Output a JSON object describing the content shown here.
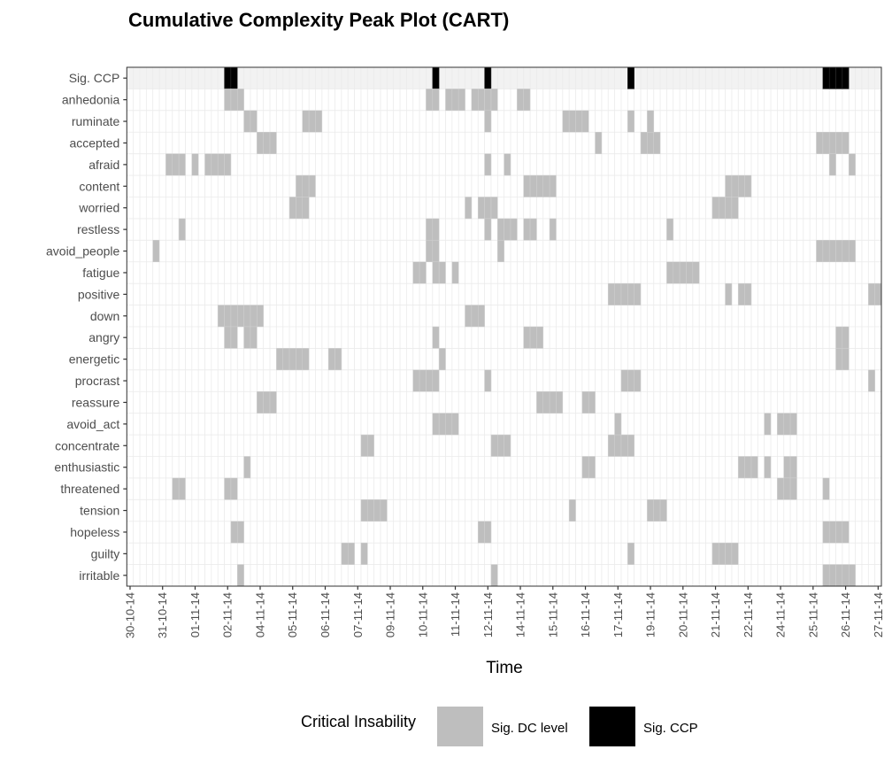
{
  "chart_data": {
    "type": "heatmap",
    "title": "Cumulative Complexity Peak Plot (CART)",
    "xlabel": "Time",
    "ylabel": "",
    "n_time_points": 116,
    "x_tick_every": 5,
    "x_tick_labels": [
      "30-10-14",
      "31-10-14",
      "01-11-14",
      "02-11-14",
      "04-11-14",
      "05-11-14",
      "06-11-14",
      "07-11-14",
      "09-11-14",
      "10-11-14",
      "11-11-14",
      "12-11-14",
      "14-11-14",
      "15-11-14",
      "16-11-14",
      "17-11-14",
      "19-11-14",
      "20-11-14",
      "21-11-14",
      "22-11-14",
      "24-11-14",
      "25-11-14",
      "26-11-14",
      "27-11-14"
    ],
    "grid": true,
    "legend": {
      "position": "bottom",
      "title": "Critical Insability",
      "entries": [
        {
          "label": "Sig. DC level",
          "color": "#bebebe"
        },
        {
          "label": "Sig. CCP",
          "color": "#000000"
        }
      ]
    },
    "ccp_row_background": "#f2f2f2",
    "rows": [
      {
        "name": "Sig. CCP",
        "kind": "ccp",
        "cells": [
          15,
          16,
          47,
          55,
          77,
          107,
          108,
          109,
          110
        ]
      },
      {
        "name": "anhedonia",
        "cells": [
          15,
          16,
          17,
          46,
          47,
          49,
          50,
          51,
          53,
          54,
          55,
          56,
          60,
          61
        ]
      },
      {
        "name": "ruminate",
        "cells": [
          18,
          19,
          27,
          28,
          29,
          55,
          67,
          68,
          69,
          70,
          77,
          80
        ]
      },
      {
        "name": "accepted",
        "cells": [
          20,
          21,
          22,
          72,
          79,
          80,
          81,
          106,
          107,
          108,
          109,
          110
        ]
      },
      {
        "name": "afraid",
        "cells": [
          6,
          7,
          8,
          10,
          12,
          13,
          14,
          15,
          55,
          58,
          108,
          111
        ]
      },
      {
        "name": "content",
        "cells": [
          26,
          27,
          28,
          61,
          62,
          63,
          64,
          65,
          92,
          93,
          94,
          95
        ]
      },
      {
        "name": "worried",
        "cells": [
          25,
          26,
          27,
          52,
          54,
          55,
          56,
          90,
          91,
          92,
          93
        ]
      },
      {
        "name": "restless",
        "cells": [
          8,
          46,
          47,
          55,
          57,
          58,
          59,
          61,
          62,
          65,
          83
        ]
      },
      {
        "name": "avoid_people",
        "cells": [
          4,
          46,
          47,
          57,
          106,
          107,
          108,
          109,
          110,
          111
        ]
      },
      {
        "name": "fatigue",
        "cells": [
          44,
          45,
          47,
          48,
          50,
          83,
          84,
          85,
          86,
          87
        ]
      },
      {
        "name": "positive",
        "cells": [
          74,
          75,
          76,
          77,
          78,
          92,
          94,
          95,
          114,
          115
        ]
      },
      {
        "name": "down",
        "cells": [
          14,
          15,
          16,
          17,
          18,
          19,
          20,
          52,
          53,
          54
        ]
      },
      {
        "name": "angry",
        "cells": [
          15,
          16,
          18,
          19,
          47,
          61,
          62,
          63,
          109,
          110
        ]
      },
      {
        "name": "energetic",
        "cells": [
          23,
          24,
          25,
          26,
          27,
          31,
          32,
          48,
          109,
          110
        ]
      },
      {
        "name": "procrast",
        "cells": [
          44,
          45,
          46,
          47,
          55,
          76,
          77,
          78,
          114
        ]
      },
      {
        "name": "reassure",
        "cells": [
          20,
          21,
          22,
          63,
          64,
          65,
          66,
          70,
          71
        ]
      },
      {
        "name": "avoid_act",
        "cells": [
          47,
          48,
          49,
          50,
          75,
          98,
          100,
          101,
          102
        ]
      },
      {
        "name": "concentrate",
        "cells": [
          36,
          37,
          56,
          57,
          58,
          74,
          75,
          76,
          77
        ]
      },
      {
        "name": "enthusiastic",
        "cells": [
          18,
          70,
          71,
          94,
          95,
          96,
          98,
          101,
          102
        ]
      },
      {
        "name": "threatened",
        "cells": [
          7,
          8,
          15,
          16,
          100,
          101,
          102,
          107
        ]
      },
      {
        "name": "tension",
        "cells": [
          36,
          37,
          38,
          39,
          68,
          80,
          81,
          82
        ]
      },
      {
        "name": "hopeless",
        "cells": [
          16,
          17,
          54,
          55,
          107,
          108,
          109,
          110
        ]
      },
      {
        "name": "guilty",
        "cells": [
          33,
          34,
          36,
          77,
          90,
          91,
          92,
          93
        ]
      },
      {
        "name": "irritable",
        "cells": [
          17,
          56,
          107,
          108,
          109,
          110,
          111
        ]
      }
    ]
  }
}
